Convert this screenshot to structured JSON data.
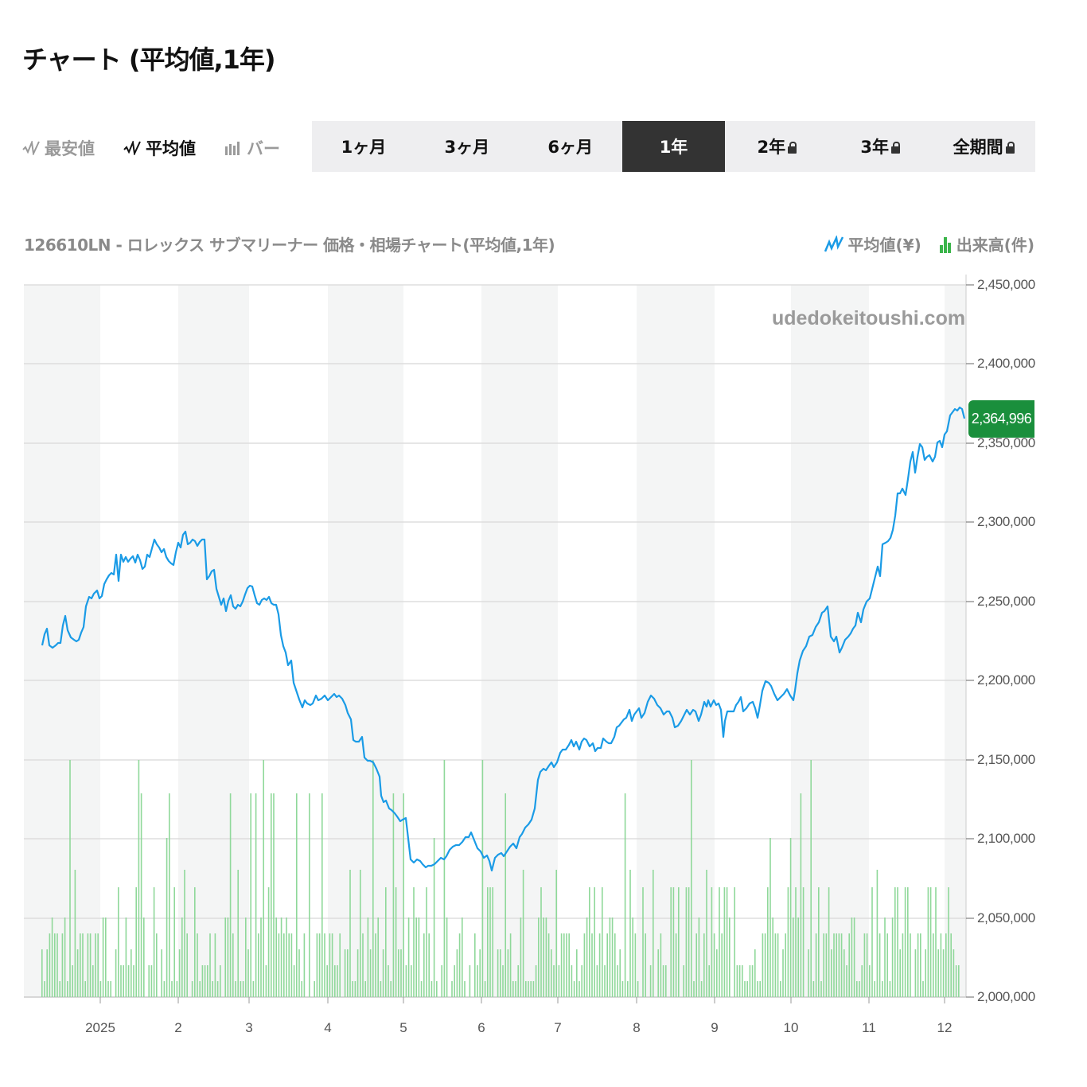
{
  "page": {
    "title": "チャート (平均値,1年)"
  },
  "type_switch": {
    "items": [
      {
        "label": "最安値",
        "icon": "line-chart-icon",
        "active": false
      },
      {
        "label": "平均値",
        "icon": "line-chart-icon",
        "active": true
      },
      {
        "label": "バー",
        "icon": "bar-chart-icon",
        "active": false
      }
    ]
  },
  "periods": {
    "items": [
      {
        "label": "1ヶ月",
        "locked": false,
        "active": false
      },
      {
        "label": "3ヶ月",
        "locked": false,
        "active": false
      },
      {
        "label": "6ヶ月",
        "locked": false,
        "active": false
      },
      {
        "label": "1年",
        "locked": false,
        "active": true
      },
      {
        "label": "2年",
        "locked": true,
        "active": false
      },
      {
        "label": "3年",
        "locked": true,
        "active": false
      },
      {
        "label": "全期間",
        "locked": true,
        "active": false
      }
    ]
  },
  "chart_header": {
    "subtitle": "126610LN - ロレックス サブマリーナー 価格・相場チャート(平均値,1年)",
    "legend": [
      {
        "label": "平均値(¥)",
        "icon": "line-series-icon",
        "color": "#1a9be6"
      },
      {
        "label": "出来高(件)",
        "icon": "volume-bar-icon",
        "color": "#3bb54a"
      }
    ]
  },
  "watermark": "udedokeitoushi.com",
  "last_value_badge": "2,364,996",
  "colors": {
    "line": "#1a9be6",
    "volume": "#8fd89a",
    "badge": "#1a8f3c",
    "band": "#f4f5f5",
    "grid": "#dddddd"
  },
  "chart_data": {
    "type": "line",
    "title": "126610LN - ロレックス サブマリーナー 価格・相場チャート(平均値,1年)",
    "xlabel": "",
    "ylabel": "",
    "ylim": [
      2000000,
      2450000
    ],
    "grid": true,
    "legend_position": "top-right",
    "y_ticks": [
      "2,000,000",
      "2,050,000",
      "2,100,000",
      "2,150,000",
      "2,200,000",
      "2,250,000",
      "2,300,000",
      "2,350,000",
      "2,400,000",
      "2,450,000"
    ],
    "x_ticks": [
      "2025",
      "2",
      "3",
      "4",
      "5",
      "6",
      "7",
      "8",
      "9",
      "10",
      "11",
      "12"
    ],
    "series": [
      {
        "name": "平均値(¥)",
        "type": "line",
        "x": [
          "2024-12-09",
          "2024-12-16",
          "2024-12-23",
          "2025-01-01",
          "2025-01-08",
          "2025-01-15",
          "2025-01-22",
          "2025-02-01",
          "2025-02-08",
          "2025-02-15",
          "2025-02-22",
          "2025-03-01",
          "2025-03-08",
          "2025-03-15",
          "2025-03-22",
          "2025-04-01",
          "2025-04-08",
          "2025-04-15",
          "2025-04-22",
          "2025-05-01",
          "2025-05-08",
          "2025-05-15",
          "2025-05-22",
          "2025-06-01",
          "2025-06-08",
          "2025-06-15",
          "2025-06-22",
          "2025-07-01",
          "2025-07-08",
          "2025-07-15",
          "2025-07-22",
          "2025-08-01",
          "2025-08-08",
          "2025-08-15",
          "2025-08-22",
          "2025-09-01",
          "2025-09-08",
          "2025-09-15",
          "2025-09-22",
          "2025-10-01",
          "2025-10-08",
          "2025-10-15",
          "2025-10-22",
          "2025-11-01",
          "2025-11-08",
          "2025-11-15",
          "2025-11-22",
          "2025-12-01",
          "2025-12-08"
        ],
        "values": [
          2222000,
          2220000,
          2232000,
          2250000,
          2258000,
          2275000,
          2278000,
          2280000,
          2290000,
          2288000,
          2265000,
          2244000,
          2258000,
          2248000,
          2205000,
          2182000,
          2188000,
          2190000,
          2163000,
          2135000,
          2110000,
          2085000,
          2088000,
          2098000,
          2080000,
          2100000,
          2140000,
          2150000,
          2158000,
          2162000,
          2178000,
          2186000,
          2175000,
          2180000,
          2182000,
          2186000,
          2180000,
          2182000,
          2198000,
          2190000,
          2240000,
          2225000,
          2240000,
          2285000,
          2318000,
          2340000,
          2348000,
          2368000,
          2364996
        ]
      },
      {
        "name": "出来高(件)",
        "type": "bar",
        "note": "daily volume shown as thin bars on secondary scale, peaks ~10 units"
      }
    ]
  }
}
